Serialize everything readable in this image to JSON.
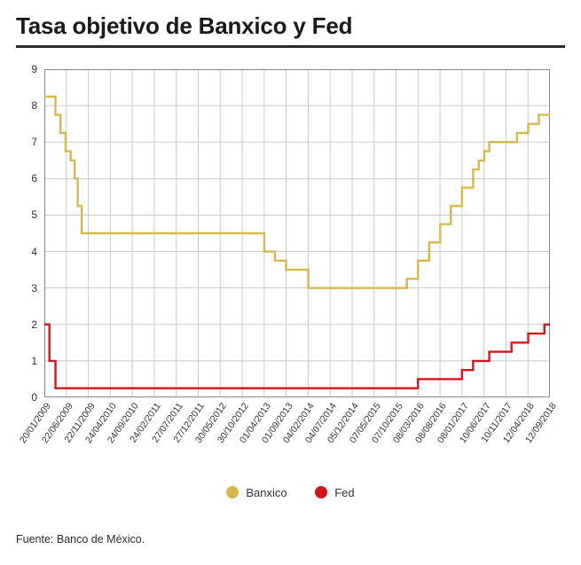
{
  "title": "Tasa objetivo de Banxico y Fed",
  "source": "Fuente: Banco de México.",
  "chart": {
    "type": "line-step",
    "background_color": "#ffffff",
    "grid_color": "#c9c9c9",
    "border_color": "#888888",
    "title_fontsize": 26,
    "axis_label_fontsize": 12,
    "xtick_fontsize": 10.5,
    "xtick_rotation": -55,
    "ylim": [
      0,
      9
    ],
    "ytick_step": 1,
    "yticks": [
      0,
      1,
      2,
      3,
      4,
      5,
      6,
      7,
      8,
      9
    ],
    "x_categories": [
      "20/01/2009",
      "22/06/2009",
      "22/11/2009",
      "24/04/2010",
      "24/09/2010",
      "24/02/2011",
      "27/07/2011",
      "27/12/2011",
      "30/05/2012",
      "30/10/2012",
      "01/04/2013",
      "01/09/2013",
      "04/02/2014",
      "04/07/2014",
      "05/12/2014",
      "07/05/2015",
      "07/10/2015",
      "08/03/2016",
      "08/08/2016",
      "08/01/2017",
      "10/06/2017",
      "10/11/2017",
      "12/04/2018",
      "12/09/2018"
    ],
    "series": [
      {
        "name": "Banxico",
        "color": "#d7b84b",
        "line_width": 2.4,
        "step": true,
        "values": [
          8.25,
          7.75,
          7.25,
          6.75,
          6.5,
          6.0,
          5.25,
          4.5,
          4.5,
          4.5,
          4.5,
          4.5,
          4.5,
          4.5,
          4.5,
          4.5,
          4.5,
          4.5,
          4.5,
          4.0,
          3.75,
          3.5,
          3.5,
          3.0,
          3.0,
          3.0,
          3.0,
          3.0,
          3.0,
          3.0,
          3.0,
          3.0,
          3.25,
          3.75,
          4.25,
          4.75,
          5.25,
          5.75,
          6.25,
          6.5,
          6.75,
          7.0,
          7.0,
          7.25,
          7.5,
          7.75,
          7.75
        ],
        "x": [
          0.0,
          0.022,
          0.032,
          0.042,
          0.052,
          0.06,
          0.066,
          0.074,
          0.087,
          0.109,
          0.13,
          0.152,
          0.174,
          0.217,
          0.261,
          0.304,
          0.348,
          0.391,
          0.413,
          0.435,
          0.456,
          0.478,
          0.5,
          0.522,
          0.543,
          0.565,
          0.587,
          0.609,
          0.63,
          0.652,
          0.674,
          0.696,
          0.717,
          0.739,
          0.761,
          0.783,
          0.804,
          0.826,
          0.848,
          0.859,
          0.87,
          0.88,
          0.913,
          0.935,
          0.957,
          0.978,
          1.0
        ]
      },
      {
        "name": "Fed",
        "color": "#d4161b",
        "line_width": 2.4,
        "step": true,
        "values": [
          2.0,
          1.0,
          0.25,
          0.25,
          0.25,
          0.25,
          0.25,
          0.25,
          0.25,
          0.25,
          0.25,
          0.25,
          0.25,
          0.25,
          0.25,
          0.25,
          0.25,
          0.25,
          0.25,
          0.25,
          0.5,
          0.5,
          0.5,
          0.5,
          0.75,
          1.0,
          1.0,
          1.25,
          1.25,
          1.5,
          1.5,
          1.75,
          1.75,
          2.0,
          2.0
        ],
        "x": [
          0.0,
          0.01,
          0.022,
          0.065,
          0.13,
          0.174,
          0.217,
          0.261,
          0.304,
          0.348,
          0.391,
          0.435,
          0.478,
          0.522,
          0.565,
          0.609,
          0.652,
          0.674,
          0.7,
          0.717,
          0.739,
          0.761,
          0.783,
          0.804,
          0.826,
          0.848,
          0.859,
          0.88,
          0.902,
          0.924,
          0.946,
          0.957,
          0.978,
          0.989,
          1.0
        ]
      }
    ],
    "legend": {
      "position": "bottom-center",
      "items": [
        "Banxico",
        "Fed"
      ],
      "colors": [
        "#d7b84b",
        "#d4161b"
      ],
      "marker": "circle",
      "marker_size": 14,
      "fontsize": 13
    }
  }
}
